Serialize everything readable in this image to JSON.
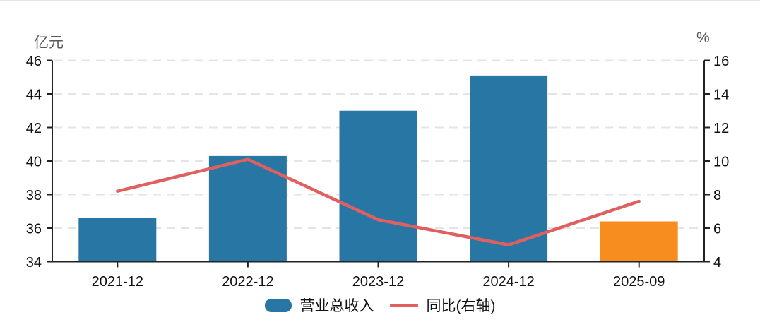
{
  "chart_data": {
    "type": "bar",
    "categories": [
      "2021-12",
      "2022-12",
      "2023-12",
      "2024-12",
      "2025-09"
    ],
    "series": [
      {
        "name": "营业总收入",
        "type": "bar",
        "axis": "left",
        "values": [
          36.6,
          40.3,
          43.0,
          45.1,
          36.4
        ],
        "bar_colors": [
          "#2776A4",
          "#2776A4",
          "#2776A4",
          "#2776A4",
          "#F78D1F"
        ]
      },
      {
        "name": "同比(右轴)",
        "type": "line",
        "axis": "right",
        "values": [
          8.2,
          10.1,
          6.5,
          5.0,
          7.6
        ],
        "color": "#E06060"
      }
    ],
    "left_axis": {
      "title": "亿元",
      "min": 34,
      "max": 46,
      "ticks": [
        46,
        44,
        42,
        40,
        38,
        36,
        34
      ]
    },
    "right_axis": {
      "title": "%",
      "min": 4,
      "max": 16,
      "ticks": [
        16,
        14,
        12,
        10,
        8,
        6,
        4
      ]
    },
    "grid": "horizontal-dashed",
    "legend_position": "bottom"
  },
  "legend": {
    "items": [
      {
        "label": "营业总收入",
        "type": "bar",
        "color": "#2776A4"
      },
      {
        "label": "同比(右轴)",
        "type": "line",
        "color": "#E06060"
      }
    ]
  },
  "colors": {
    "bar_blue": "#2776A4",
    "bar_orange": "#F78D1F",
    "line_red": "#E06060",
    "axis": "#222222",
    "gridline": "#e4e4e4",
    "tick_label": "#111111",
    "axis_title": "#595959"
  }
}
